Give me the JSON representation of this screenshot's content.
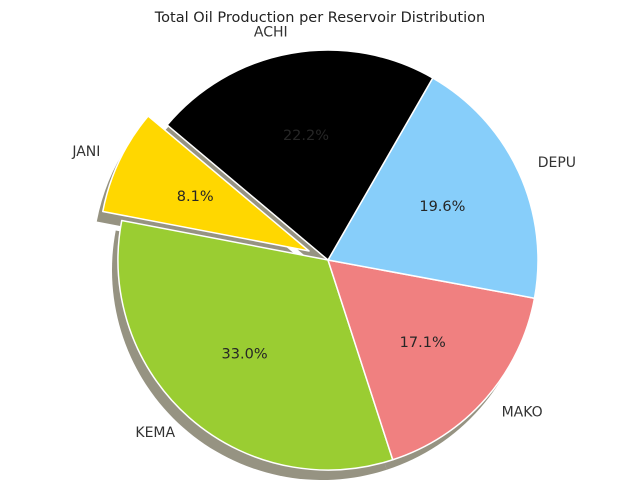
{
  "chart_data": {
    "type": "pie",
    "title": "Total Oil Production per Reservoir Distribution",
    "categories": [
      "JANI",
      "KEMA",
      "MAKO",
      "DEPU",
      "ACHI"
    ],
    "values": [
      8.1,
      33.0,
      17.1,
      19.6,
      22.2
    ],
    "value_labels": [
      "8.1%",
      "33.0%",
      "17.1%",
      "19.6%",
      "22.2%"
    ],
    "colors": [
      "#FFD700",
      "#9ACD32",
      "#F08080",
      "#87CEFA",
      "#000000"
    ],
    "percent_label_colors": [
      "#262626",
      "#262626",
      "#262626",
      "#262626",
      "#3a3a3a"
    ],
    "exploded": [
      "JANI"
    ],
    "shadow": true,
    "start_angle_deg": 140,
    "direction": "counterclockwise"
  }
}
